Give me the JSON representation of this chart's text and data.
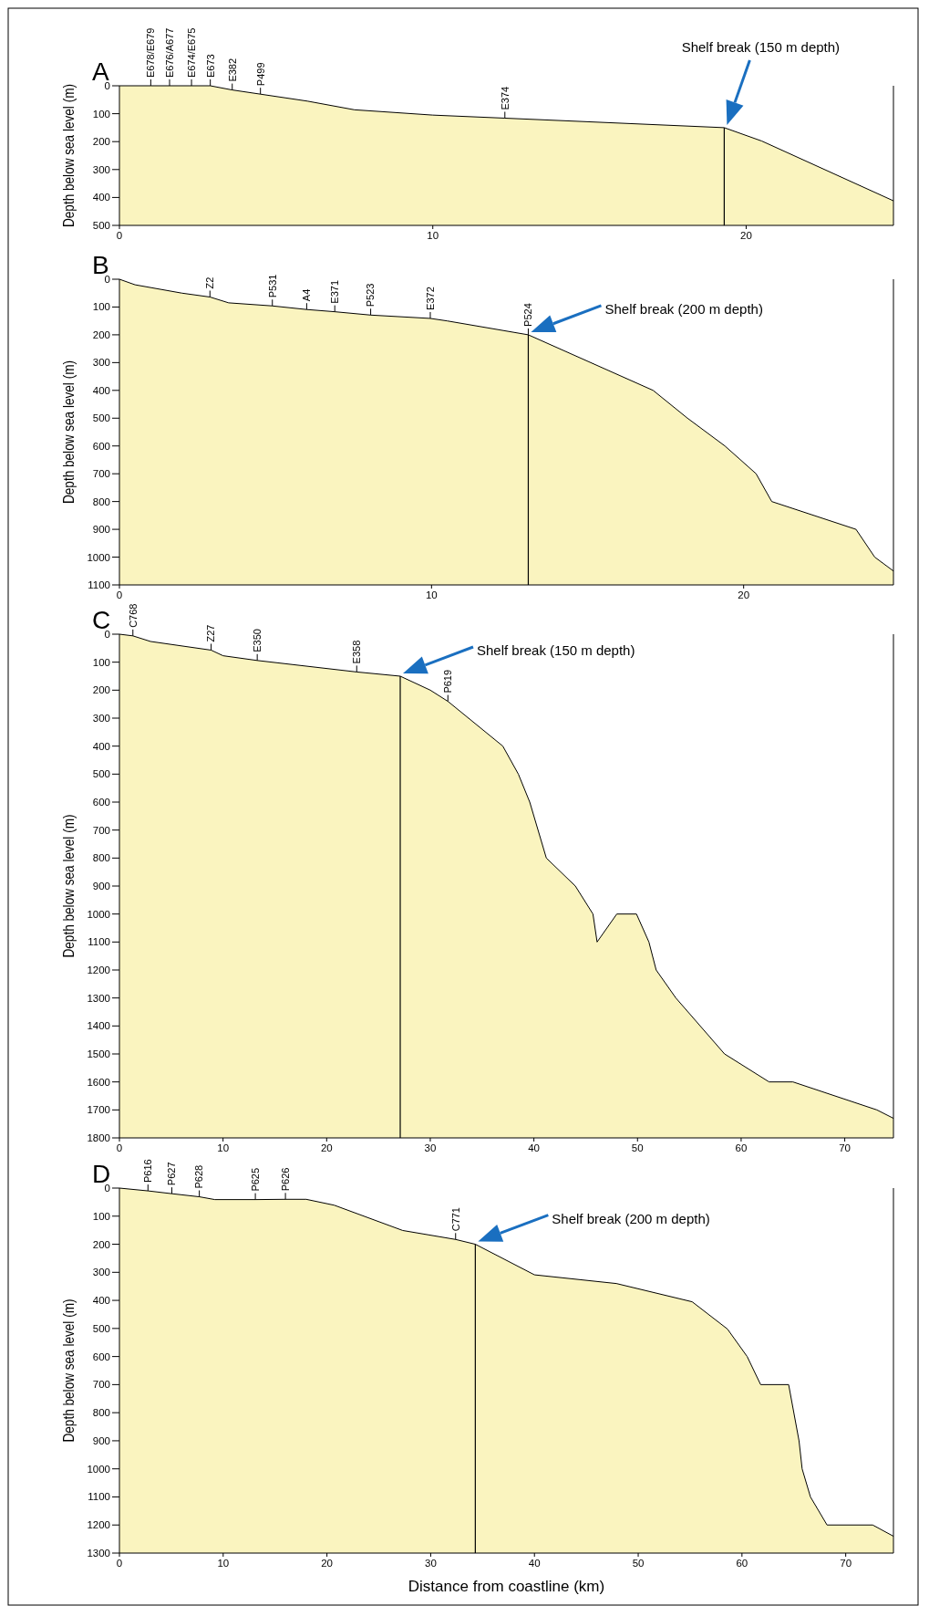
{
  "chart_data": [
    {
      "type": "line",
      "title": "A",
      "ylabel": "Depth below sea level (m)",
      "xlim": [
        0,
        24.7
      ],
      "xticks": [
        0,
        10,
        20
      ],
      "ylim": [
        500,
        0
      ],
      "yticks": [
        0,
        100,
        200,
        300,
        400,
        500
      ],
      "grid": false,
      "series": [
        {
          "color": "#000000",
          "x": [
            0,
            1.0,
            1.6,
            2.3,
            2.9,
            3.6,
            4.5,
            6,
            7.5,
            10,
            12.3,
            19.3,
            20.5,
            24.7
          ],
          "values": [
            0,
            0,
            0,
            0,
            0,
            15,
            30,
            55,
            86,
            105,
            116,
            150,
            198,
            412
          ],
          "lower": [
            0,
            0,
            0,
            0,
            0,
            15,
            30,
            55,
            86,
            105,
            116,
            150,
            198,
            412
          ],
          "upper": [
            500,
            500,
            500,
            500,
            500,
            500,
            500,
            500,
            500,
            500,
            500,
            500,
            500,
            500
          ]
        }
      ],
      "ref_lines": [
        {
          "axis": "x",
          "value": 19.3,
          "label": "Shelf break (150 m depth)"
        }
      ],
      "annotations": [
        {
          "text": "E678/E679",
          "x": 1.0,
          "y": 0
        },
        {
          "text": "E676/A677",
          "x": 1.6,
          "y": 0
        },
        {
          "text": "E674/E675",
          "x": 2.3,
          "y": 0
        },
        {
          "text": "E673",
          "x": 2.9,
          "y": 0
        },
        {
          "text": "E382",
          "x": 3.6,
          "y": 15
        },
        {
          "text": "P499",
          "x": 4.5,
          "y": 30
        },
        {
          "text": "E374",
          "x": 12.3,
          "y": 116
        }
      ]
    },
    {
      "type": "line",
      "title": "B",
      "ylabel": "Depth below sea level (m)",
      "xlim": [
        0,
        24.8
      ],
      "xticks": [
        0,
        10,
        20
      ],
      "ylim": [
        1100,
        0
      ],
      "yticks": [
        0,
        100,
        200,
        300,
        400,
        500,
        600,
        700,
        800,
        900,
        1000,
        1100
      ],
      "grid": false,
      "series": [
        {
          "color": "#000000",
          "x": [
            0,
            0.5,
            2,
            2.9,
            3.5,
            4.9,
            6.0,
            6.9,
            8.05,
            9.96,
            10.5,
            13.1,
            17.1,
            18.2,
            19.4,
            20.4,
            20.9,
            23.6,
            24.2,
            24.8
          ],
          "values": [
            0,
            20,
            50,
            64,
            85,
            96,
            109,
            117,
            129,
            141,
            150,
            200,
            400,
            500,
            600,
            700,
            800,
            900,
            1000,
            1050
          ],
          "lower": [
            0,
            20,
            50,
            64,
            85,
            96,
            109,
            117,
            129,
            141,
            150,
            200,
            400,
            500,
            600,
            700,
            800,
            900,
            1000,
            1050
          ],
          "upper": [
            1100,
            1100,
            1100,
            1100,
            1100,
            1100,
            1100,
            1100,
            1100,
            1100,
            1100,
            1100,
            1100,
            1100,
            1100,
            1100,
            1100,
            1100,
            1100,
            1100
          ]
        }
      ],
      "ref_lines": [
        {
          "axis": "x",
          "value": 13.1,
          "label": "Shelf break (200 m depth)"
        }
      ],
      "annotations": [
        {
          "text": "Z2",
          "x": 2.9,
          "y": 64
        },
        {
          "text": "P531",
          "x": 4.9,
          "y": 96
        },
        {
          "text": "A4",
          "x": 6.0,
          "y": 109
        },
        {
          "text": "E371",
          "x": 6.9,
          "y": 117
        },
        {
          "text": "P523",
          "x": 8.05,
          "y": 129
        },
        {
          "text": "E372",
          "x": 9.96,
          "y": 141
        },
        {
          "text": "P524",
          "x": 13.1,
          "y": 200
        }
      ]
    },
    {
      "type": "line",
      "title": "C",
      "ylabel": "Depth below sea level (m)",
      "xlim": [
        0,
        74.7
      ],
      "xticks": [
        0,
        10,
        20,
        30,
        40,
        50,
        60,
        70
      ],
      "ylim": [
        1800,
        0
      ],
      "yticks": [
        0,
        100,
        200,
        300,
        400,
        500,
        600,
        700,
        800,
        900,
        1000,
        1100,
        1200,
        1300,
        1400,
        1500,
        1600,
        1700,
        1800
      ],
      "grid": false,
      "series": [
        {
          "color": "#000000",
          "x": [
            0,
            1.3,
            3,
            8.85,
            10,
            13.3,
            22.9,
            27.1,
            30,
            31.7,
            37,
            38.5,
            39.6,
            41.2,
            44,
            45.7,
            46.1,
            48,
            49.9,
            51.1,
            51.8,
            53.7,
            58.4,
            62.7,
            65,
            73.1,
            74.7
          ],
          "values": [
            0,
            6,
            26,
            57,
            77,
            94,
            135,
            150,
            200,
            240,
            400,
            500,
            600,
            800,
            900,
            1000,
            1100,
            1000,
            1000,
            1100,
            1200,
            1300,
            1500,
            1600,
            1600,
            1700,
            1730
          ],
          "lower": [
            0,
            6,
            26,
            57,
            77,
            94,
            135,
            150,
            200,
            240,
            400,
            500,
            600,
            800,
            900,
            1000,
            1100,
            1000,
            1000,
            1100,
            1200,
            1300,
            1500,
            1600,
            1600,
            1700,
            1730
          ],
          "upper": [
            1800,
            1800,
            1800,
            1800,
            1800,
            1800,
            1800,
            1800,
            1800,
            1800,
            1800,
            1800,
            1800,
            1800,
            1800,
            1800,
            1800,
            1800,
            1800,
            1800,
            1800,
            1800,
            1800,
            1800,
            1800,
            1800,
            1800
          ]
        }
      ],
      "ref_lines": [
        {
          "axis": "x",
          "value": 27.1,
          "label": "Shelf break (150 m depth)"
        }
      ],
      "annotations": [
        {
          "text": "C768",
          "x": 1.3,
          "y": 6
        },
        {
          "text": "Z27",
          "x": 8.85,
          "y": 57
        },
        {
          "text": "E350",
          "x": 13.3,
          "y": 94
        },
        {
          "text": "E358",
          "x": 22.9,
          "y": 135
        },
        {
          "text": "P619",
          "x": 31.7,
          "y": 240
        }
      ]
    },
    {
      "type": "line",
      "title": "D",
      "ylabel": "Depth below sea level (m)",
      "xlabel": "Distance from coastline (km)",
      "xlim": [
        0,
        74.6
      ],
      "xticks": [
        0,
        10,
        20,
        30,
        40,
        50,
        60,
        70
      ],
      "ylim": [
        1300,
        0
      ],
      "yticks": [
        0,
        100,
        200,
        300,
        400,
        500,
        600,
        700,
        800,
        900,
        1000,
        1100,
        1200,
        1300
      ],
      "grid": false,
      "series": [
        {
          "color": "#000000",
          "x": [
            0,
            2.75,
            5.05,
            7.7,
            9.2,
            13.1,
            16.0,
            18,
            20.7,
            27.3,
            32.4,
            34.3,
            40,
            47.9,
            55.2,
            58.6,
            60.5,
            61.8,
            64.5,
            65.5,
            65.8,
            66.6,
            68.2,
            72.6,
            74.6
          ],
          "values": [
            0,
            10,
            20,
            31,
            41,
            41,
            40,
            40,
            61,
            151,
            183,
            200,
            309,
            340,
            405,
            502,
            600,
            700,
            700,
            900,
            1000,
            1100,
            1200,
            1200,
            1240
          ],
          "lower": [
            0,
            10,
            20,
            31,
            41,
            41,
            40,
            40,
            61,
            151,
            183,
            200,
            309,
            340,
            405,
            502,
            600,
            700,
            700,
            900,
            1000,
            1100,
            1200,
            1200,
            1240
          ],
          "upper": [
            1300,
            1300,
            1300,
            1300,
            1300,
            1300,
            1300,
            1300,
            1300,
            1300,
            1300,
            1300,
            1300,
            1300,
            1300,
            1300,
            1300,
            1300,
            1300,
            1300,
            1300,
            1300,
            1300,
            1300,
            1300
          ]
        }
      ],
      "ref_lines": [
        {
          "axis": "x",
          "value": 34.3,
          "label": "Shelf break (200 m depth)"
        }
      ],
      "annotations": [
        {
          "text": "P616",
          "x": 2.75,
          "y": 10
        },
        {
          "text": "P627",
          "x": 5.05,
          "y": 20
        },
        {
          "text": "P628",
          "x": 7.7,
          "y": 31
        },
        {
          "text": "P625",
          "x": 13.1,
          "y": 41
        },
        {
          "text": "P626",
          "x": 16.0,
          "y": 40
        },
        {
          "text": "C771",
          "x": 32.4,
          "y": 183
        }
      ]
    }
  ]
}
